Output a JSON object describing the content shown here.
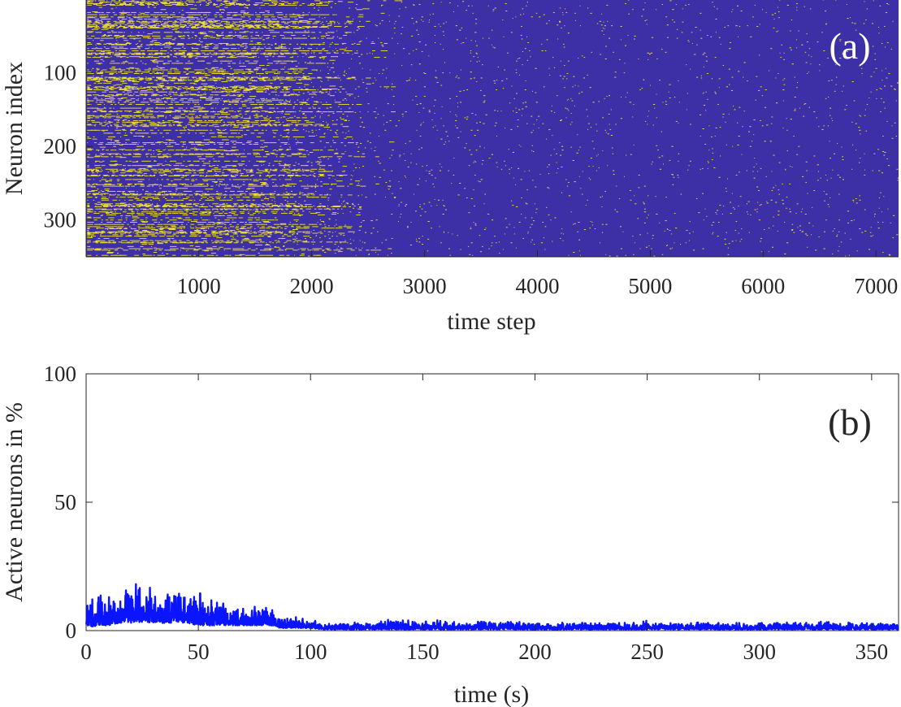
{
  "chart_data": [
    {
      "type": "heatmap",
      "panel_label": "(a)",
      "xlabel": "time step",
      "ylabel": "Neuron index",
      "xlim": [
        1,
        7200
      ],
      "ylim": [
        1,
        350
      ],
      "y_reversed": true,
      "x_ticks": [
        "1000",
        "2000",
        "3000",
        "4000",
        "5000",
        "6000",
        "7000"
      ],
      "y_ticks": [
        "100",
        "200",
        "300"
      ],
      "colors": {
        "inactive": "#3d2fa6",
        "active": "#f5e52c"
      },
      "activity_profile": {
        "time_step": [
          0,
          500,
          1000,
          1500,
          2000,
          2300,
          2500,
          3000,
          3500,
          4000,
          4500,
          5000,
          5500,
          6000,
          6500,
          7200
        ],
        "active_fraction": [
          0.1,
          0.11,
          0.1,
          0.09,
          0.07,
          0.05,
          0.02,
          0.02,
          0.02,
          0.02,
          0.015,
          0.015,
          0.015,
          0.015,
          0.015,
          0.015
        ]
      }
    },
    {
      "type": "line",
      "panel_label": "(b)",
      "xlabel": "time (s)",
      "ylabel": "Active neurons in %",
      "xlim": [
        0,
        362
      ],
      "ylim": [
        0,
        100
      ],
      "x_ticks": [
        "0",
        "50",
        "100",
        "150",
        "200",
        "250",
        "300",
        "350"
      ],
      "y_ticks": [
        "0",
        "50",
        "100"
      ],
      "color": "#0a14ff",
      "series": [
        {
          "x": [
            0,
            5,
            10,
            15,
            20,
            25,
            30,
            35,
            40,
            45,
            50,
            55,
            60,
            65,
            70,
            75,
            80,
            84,
            86,
            90,
            95,
            100,
            105,
            110,
            120,
            130,
            140,
            150,
            160,
            170,
            180,
            190,
            200,
            210,
            220,
            230,
            240,
            250,
            260,
            270,
            280,
            290,
            300,
            310,
            320,
            330,
            340,
            350,
            362
          ],
          "y_upper": [
            12,
            13,
            14,
            15,
            17,
            16,
            15,
            16,
            15,
            15,
            14,
            12,
            11,
            10,
            10,
            9,
            9,
            9,
            6,
            6,
            5,
            4,
            3.5,
            3,
            3,
            3,
            5,
            4,
            4,
            3.5,
            4,
            3.5,
            3,
            3,
            3.5,
            3,
            3,
            4,
            3,
            3,
            3,
            3,
            3,
            3,
            3,
            4,
            3,
            3,
            3
          ],
          "y_lower": [
            1,
            2,
            2,
            3,
            3,
            3,
            3,
            3,
            3,
            3,
            2,
            2,
            2,
            2,
            2,
            2,
            2,
            2,
            1,
            1,
            1,
            1,
            0.5,
            0.5,
            0.5,
            0.5,
            0.5,
            0.5,
            0.5,
            0.5,
            0.5,
            0.5,
            0.5,
            0.5,
            0.5,
            0.5,
            0.5,
            0.5,
            0.5,
            0.5,
            0.5,
            0.5,
            0.5,
            0.5,
            0.5,
            0.5,
            0.5,
            0.5,
            0.5
          ]
        }
      ]
    }
  ]
}
